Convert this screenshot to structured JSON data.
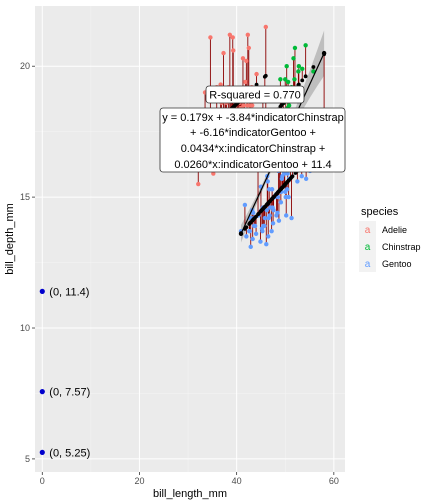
{
  "chart_data": {
    "type": "scatter",
    "title": "",
    "xlabel": "bill_length_mm",
    "ylabel": "bill_depth_mm",
    "xlim": [
      -1.5,
      62.3
    ],
    "ylim": [
      4.5,
      22.3
    ],
    "xticks": [
      0,
      20,
      40,
      60
    ],
    "yticks": [
      5,
      10,
      15,
      20
    ],
    "grid": true,
    "legend": {
      "title": "species",
      "position": "right",
      "entries": [
        {
          "name": "Adelie",
          "color": "#F8766D"
        },
        {
          "name": "Chinstrap",
          "color": "#00BA38"
        },
        {
          "name": "Gentoo",
          "color": "#619CFF"
        }
      ]
    },
    "annotations": {
      "rsquared": "R-squared = 0.770",
      "equation": [
        "y = 0.179x + -3.84*indicatorChinstrap",
        "+ -6.16*indicatorGentoo +",
        "0.0434*x:indicatorChinstrap +",
        "0.0260*x:indicatorGentoo + 11.4"
      ],
      "intercepts": [
        {
          "x": 0,
          "y": 11.4,
          "label": "(0, 11.4)"
        },
        {
          "x": 0,
          "y": 7.57,
          "label": "(0, 7.57)"
        },
        {
          "x": 0,
          "y": 5.25,
          "label": "(0, 5.25)"
        }
      ]
    },
    "fit_line": {
      "x": [
        40.9,
        58.0
      ],
      "y": [
        13.6,
        20.5
      ]
    },
    "series": [
      {
        "name": "Adelie",
        "color": "#F8766D",
        "points": [
          [
            32.1,
            15.5
          ],
          [
            33.5,
            19.0
          ],
          [
            34.0,
            17.1
          ],
          [
            34.5,
            18.1
          ],
          [
            34.6,
            21.1
          ],
          [
            35.0,
            17.9
          ],
          [
            35.2,
            15.9
          ],
          [
            35.5,
            16.2
          ],
          [
            35.7,
            18.0
          ],
          [
            35.9,
            19.2
          ],
          [
            36.0,
            17.8
          ],
          [
            36.2,
            17.3
          ],
          [
            36.4,
            17.0
          ],
          [
            36.6,
            17.8
          ],
          [
            36.7,
            19.3
          ],
          [
            36.9,
            18.6
          ],
          [
            37.0,
            16.9
          ],
          [
            37.2,
            18.1
          ],
          [
            37.3,
            20.5
          ],
          [
            37.6,
            19.1
          ],
          [
            37.7,
            18.7
          ],
          [
            37.8,
            18.3
          ],
          [
            37.9,
            18.6
          ],
          [
            38.1,
            17.0
          ],
          [
            38.2,
            18.1
          ],
          [
            38.3,
            19.2
          ],
          [
            38.5,
            17.9
          ],
          [
            38.6,
            21.2
          ],
          [
            38.7,
            19.0
          ],
          [
            38.8,
            17.2
          ],
          [
            38.9,
            18.8
          ],
          [
            39.0,
            17.5
          ],
          [
            39.1,
            18.7
          ],
          [
            39.2,
            21.1
          ],
          [
            39.3,
            20.6
          ],
          [
            39.5,
            16.7
          ],
          [
            39.6,
            17.7
          ],
          [
            39.7,
            18.4
          ],
          [
            39.8,
            19.1
          ],
          [
            40.1,
            18.9
          ],
          [
            40.2,
            17.0
          ],
          [
            40.3,
            18.0
          ],
          [
            40.5,
            17.9
          ],
          [
            40.6,
            18.6
          ],
          [
            40.7,
            17.0
          ],
          [
            40.8,
            18.4
          ],
          [
            40.9,
            16.6
          ],
          [
            41.1,
            17.6
          ],
          [
            41.3,
            20.3
          ],
          [
            41.4,
            18.5
          ],
          [
            41.5,
            18.3
          ],
          [
            41.6,
            18.0
          ],
          [
            41.8,
            19.4
          ],
          [
            42.0,
            20.2
          ],
          [
            42.2,
            18.5
          ],
          [
            42.3,
            21.2
          ],
          [
            42.5,
            20.7
          ],
          [
            42.7,
            18.3
          ],
          [
            42.8,
            18.5
          ],
          [
            42.9,
            17.6
          ],
          [
            43.1,
            19.2
          ],
          [
            43.2,
            18.5
          ],
          [
            44.1,
            19.7
          ],
          [
            45.8,
            18.9
          ],
          [
            46.0,
            21.5
          ]
        ]
      },
      {
        "name": "Chinstrap",
        "color": "#00BA38",
        "points": [
          [
            40.9,
            16.6
          ],
          [
            42.4,
            17.3
          ],
          [
            42.5,
            16.7
          ],
          [
            43.2,
            16.6
          ],
          [
            43.5,
            18.1
          ],
          [
            45.2,
            17.8
          ],
          [
            45.4,
            18.7
          ],
          [
            45.5,
            17.0
          ],
          [
            45.7,
            17.3
          ],
          [
            45.9,
            17.1
          ],
          [
            46.0,
            18.9
          ],
          [
            46.1,
            18.2
          ],
          [
            46.4,
            17.8
          ],
          [
            46.5,
            17.9
          ],
          [
            46.6,
            17.8
          ],
          [
            46.8,
            16.5
          ],
          [
            46.9,
            16.6
          ],
          [
            47.0,
            17.3
          ],
          [
            47.5,
            16.8
          ],
          [
            48.1,
            16.4
          ],
          [
            48.5,
            17.5
          ],
          [
            49.0,
            19.5
          ],
          [
            49.2,
            18.2
          ],
          [
            49.5,
            19.0
          ],
          [
            49.6,
            18.2
          ],
          [
            49.7,
            18.6
          ],
          [
            50.0,
            19.5
          ],
          [
            50.1,
            17.9
          ],
          [
            50.2,
            18.8
          ],
          [
            50.3,
            20.0
          ],
          [
            50.5,
            18.4
          ],
          [
            50.6,
            19.4
          ],
          [
            50.8,
            18.5
          ],
          [
            50.9,
            19.1
          ],
          [
            51.0,
            18.8
          ],
          [
            51.3,
            19.2
          ],
          [
            51.4,
            19.0
          ],
          [
            51.5,
            18.7
          ],
          [
            51.7,
            20.3
          ],
          [
            51.9,
            19.5
          ],
          [
            52.0,
            20.7
          ],
          [
            52.2,
            18.8
          ],
          [
            52.7,
            19.8
          ],
          [
            52.8,
            20.0
          ],
          [
            53.5,
            19.9
          ],
          [
            54.2,
            20.8
          ],
          [
            55.8,
            19.8
          ],
          [
            58.0,
            17.8
          ]
        ]
      },
      {
        "name": "Gentoo",
        "color": "#619CFF",
        "points": [
          [
            40.9,
            13.7
          ],
          [
            41.7,
            14.7
          ],
          [
            42.0,
            13.5
          ],
          [
            42.6,
            13.7
          ],
          [
            42.7,
            13.7
          ],
          [
            42.8,
            14.2
          ],
          [
            42.9,
            13.1
          ],
          [
            43.2,
            14.5
          ],
          [
            43.3,
            13.4
          ],
          [
            43.4,
            14.4
          ],
          [
            43.5,
            14.2
          ],
          [
            43.6,
            13.9
          ],
          [
            43.8,
            13.9
          ],
          [
            44.0,
            13.6
          ],
          [
            44.4,
            17.3
          ],
          [
            44.5,
            14.3
          ],
          [
            44.9,
            13.3
          ],
          [
            45.0,
            15.4
          ],
          [
            45.1,
            14.5
          ],
          [
            45.2,
            13.8
          ],
          [
            45.3,
            13.7
          ],
          [
            45.4,
            14.6
          ],
          [
            45.5,
            13.9
          ],
          [
            45.6,
            14.6
          ],
          [
            45.7,
            13.9
          ],
          [
            45.8,
            14.2
          ],
          [
            46.1,
            13.2
          ],
          [
            46.2,
            14.5
          ],
          [
            46.3,
            15.8
          ],
          [
            46.4,
            15.6
          ],
          [
            46.5,
            13.5
          ],
          [
            46.6,
            14.2
          ],
          [
            46.7,
            15.3
          ],
          [
            46.8,
            14.3
          ],
          [
            46.9,
            14.6
          ],
          [
            47.2,
            13.7
          ],
          [
            47.3,
            15.3
          ],
          [
            47.4,
            14.6
          ],
          [
            47.5,
            14.0
          ],
          [
            47.6,
            14.5
          ],
          [
            47.7,
            15.0
          ],
          [
            47.8,
            15.0
          ],
          [
            48.1,
            15.1
          ],
          [
            48.2,
            14.3
          ],
          [
            48.4,
            14.4
          ],
          [
            48.5,
            15.0
          ],
          [
            48.6,
            16.0
          ],
          [
            48.7,
            14.1
          ],
          [
            48.8,
            16.2
          ],
          [
            49.0,
            16.1
          ],
          [
            49.1,
            14.8
          ],
          [
            49.2,
            15.2
          ],
          [
            49.3,
            15.7
          ],
          [
            49.4,
            15.8
          ],
          [
            49.5,
            16.2
          ],
          [
            49.6,
            16.0
          ],
          [
            49.8,
            15.9
          ],
          [
            49.9,
            16.1
          ],
          [
            50.0,
            15.2
          ],
          [
            50.1,
            15.0
          ],
          [
            50.2,
            14.3
          ],
          [
            50.4,
            15.3
          ],
          [
            50.5,
            15.9
          ],
          [
            50.7,
            15.0
          ],
          [
            50.8,
            15.7
          ],
          [
            51.1,
            16.3
          ],
          [
            51.3,
            14.2
          ],
          [
            51.5,
            16.3
          ],
          [
            52.1,
            17.0
          ],
          [
            52.2,
            17.1
          ],
          [
            52.5,
            15.6
          ],
          [
            53.4,
            15.8
          ],
          [
            54.3,
            15.7
          ],
          [
            55.1,
            16.0
          ],
          [
            55.9,
            17.0
          ],
          [
            59.6,
            17.0
          ]
        ]
      }
    ]
  }
}
